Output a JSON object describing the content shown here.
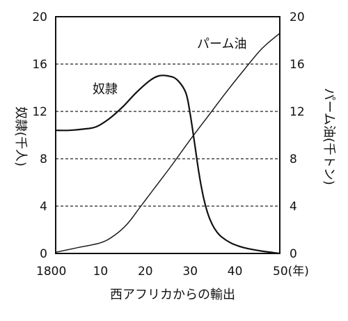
{
  "chart_data": {
    "type": "line",
    "title": "",
    "caption": "西アフリカからの輸出",
    "x_ticks": [
      "1800",
      "10",
      "20",
      "30",
      "40",
      "50(年)"
    ],
    "x_tick_values": [
      1800,
      1810,
      1820,
      1830,
      1840,
      1850
    ],
    "xlim": [
      1800,
      1850
    ],
    "y_left_label": "奴隷(千人)",
    "y_right_label": "パーム油(千トン)",
    "y_ticks": [
      "0",
      "4",
      "8",
      "12",
      "16",
      "20"
    ],
    "y_tick_values": [
      0,
      4,
      8,
      12,
      16,
      20
    ],
    "ylim": [
      0,
      20
    ],
    "grid": "dashed horizontal at 4, 8, 12, 16",
    "series": [
      {
        "name": "奴隷",
        "axis": "left",
        "x": [
          1800,
          1803,
          1806,
          1809,
          1812,
          1815,
          1818,
          1821,
          1823,
          1825,
          1827,
          1829,
          1830,
          1831,
          1832,
          1833,
          1834,
          1835,
          1836,
          1837,
          1839,
          1841,
          1843,
          1846,
          1850
        ],
        "values": [
          10.4,
          10.4,
          10.5,
          10.7,
          11.4,
          12.4,
          13.6,
          14.6,
          15.0,
          15.0,
          14.7,
          13.6,
          11.8,
          9.3,
          6.7,
          4.7,
          3.3,
          2.4,
          1.8,
          1.4,
          0.9,
          0.6,
          0.4,
          0.2,
          0.0
        ]
      },
      {
        "name": "パーム油",
        "axis": "right",
        "x": [
          1800,
          1805,
          1810,
          1813,
          1816,
          1819,
          1822,
          1826,
          1830,
          1834,
          1838,
          1842,
          1846,
          1850
        ],
        "values": [
          0.1,
          0.5,
          0.9,
          1.5,
          2.5,
          4.0,
          5.5,
          7.5,
          9.6,
          11.6,
          13.6,
          15.5,
          17.3,
          18.6
        ]
      }
    ]
  }
}
